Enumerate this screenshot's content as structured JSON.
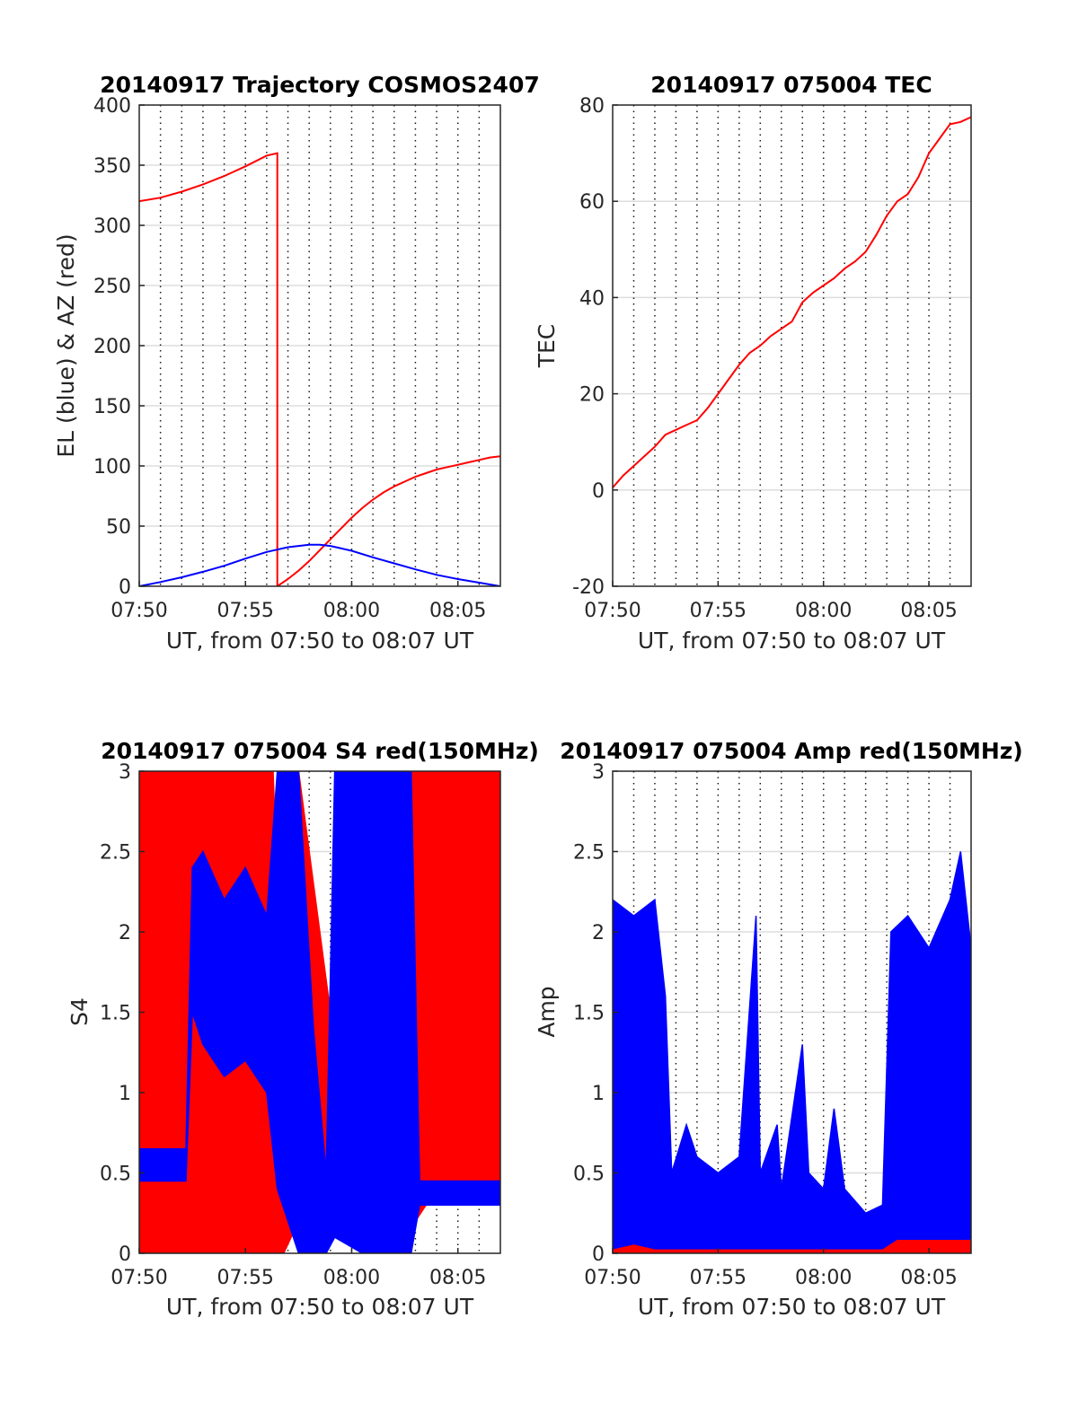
{
  "chart_data": [
    {
      "type": "line",
      "title": "20140917 Trajectory COSMOS2407",
      "xlabel": "UT, from 07:50 to 08:07 UT",
      "ylabel": "EL (blue) & AZ (red)",
      "xlim": [
        0,
        17
      ],
      "ylim": [
        0,
        400
      ],
      "x_ticks": [
        0,
        5,
        10,
        15
      ],
      "x_tick_labels": [
        "07:50",
        "07:55",
        "08:00",
        "08:05"
      ],
      "y_ticks": [
        0,
        50,
        100,
        150,
        200,
        250,
        300,
        350,
        400
      ],
      "y_tick_labels": [
        "0",
        "50",
        "100",
        "150",
        "200",
        "250",
        "300",
        "350",
        "400"
      ],
      "grid": {
        "y": "solid",
        "x_minor_dotted_every_min": true
      },
      "series": [
        {
          "color": "#ff0000",
          "mode": "line",
          "points": [
            [
              0,
              320
            ],
            [
              1,
              323
            ],
            [
              2,
              328
            ],
            [
              3,
              334
            ],
            [
              4,
              341
            ],
            [
              5,
              349
            ],
            [
              6,
              358
            ],
            [
              6.5,
              360
            ],
            [
              6.5,
              0
            ],
            [
              7,
              6
            ],
            [
              7.5,
              13
            ],
            [
              8,
              21
            ],
            [
              8.5,
              30
            ],
            [
              9,
              39
            ],
            [
              9.5,
              48
            ],
            [
              10,
              57
            ],
            [
              10.5,
              65
            ],
            [
              11,
              72
            ],
            [
              11.5,
              78
            ],
            [
              12,
              83
            ],
            [
              12.5,
              87
            ],
            [
              13,
              91
            ],
            [
              13.5,
              94
            ],
            [
              14,
              97
            ],
            [
              14.5,
              99
            ],
            [
              15,
              101
            ],
            [
              15.5,
              103
            ],
            [
              16,
              105
            ],
            [
              16.5,
              107
            ],
            [
              17,
              108
            ]
          ]
        },
        {
          "color": "#0000ff",
          "mode": "line",
          "points": [
            [
              0,
              0
            ],
            [
              1,
              3.5
            ],
            [
              2,
              7.5
            ],
            [
              3,
              12
            ],
            [
              4,
              17
            ],
            [
              5,
              23
            ],
            [
              6,
              28.5
            ],
            [
              7,
              32.5
            ],
            [
              8,
              34.5
            ],
            [
              8.5,
              34.5
            ],
            [
              9,
              33.5
            ],
            [
              10,
              29.5
            ],
            [
              11,
              24
            ],
            [
              12,
              19
            ],
            [
              13,
              14
            ],
            [
              14,
              9.5
            ],
            [
              15,
              6
            ],
            [
              16,
              3
            ],
            [
              17,
              0
            ]
          ]
        }
      ]
    },
    {
      "type": "line",
      "title": "20140917 075004 TEC",
      "xlabel": "UT, from 07:50 to 08:07 UT",
      "ylabel": "TEC",
      "xlim": [
        0,
        17
      ],
      "ylim": [
        -20,
        80
      ],
      "x_ticks": [
        0,
        5,
        10,
        15
      ],
      "x_tick_labels": [
        "07:50",
        "07:55",
        "08:00",
        "08:05"
      ],
      "y_ticks": [
        -20,
        0,
        20,
        40,
        60,
        80
      ],
      "y_tick_labels": [
        "-20",
        "0",
        "20",
        "40",
        "60",
        "80"
      ],
      "grid": {
        "y": "solid",
        "x_minor_dotted_every_min": true
      },
      "series": [
        {
          "color": "#ff0000",
          "mode": "line",
          "points": [
            [
              0,
              0.5
            ],
            [
              0.5,
              3
            ],
            [
              1,
              5
            ],
            [
              1.5,
              7
            ],
            [
              2,
              9
            ],
            [
              2.5,
              11.5
            ],
            [
              3,
              12.5
            ],
            [
              3.5,
              13.5
            ],
            [
              4,
              14.5
            ],
            [
              4.5,
              17
            ],
            [
              5,
              20
            ],
            [
              5.5,
              23
            ],
            [
              6,
              26
            ],
            [
              6.5,
              28.5
            ],
            [
              7,
              30
            ],
            [
              7.5,
              32
            ],
            [
              8,
              33.5
            ],
            [
              8.5,
              35
            ],
            [
              9,
              39
            ],
            [
              9.5,
              41
            ],
            [
              10,
              42.5
            ],
            [
              10.5,
              44
            ],
            [
              11,
              46
            ],
            [
              11.5,
              47.5
            ],
            [
              12,
              49.5
            ],
            [
              12.5,
              53
            ],
            [
              13,
              57
            ],
            [
              13.5,
              60
            ],
            [
              14,
              61.5
            ],
            [
              14.5,
              65
            ],
            [
              15,
              70
            ],
            [
              15.5,
              73
            ],
            [
              16,
              76
            ],
            [
              16.5,
              76.5
            ],
            [
              17,
              77.5
            ]
          ]
        }
      ]
    },
    {
      "type": "line",
      "title": "20140917 075004 S4 red(150MHz)",
      "xlabel": "UT, from 07:50 to 08:07 UT",
      "ylabel": "S4",
      "xlim": [
        0,
        17
      ],
      "ylim": [
        0,
        3
      ],
      "x_ticks": [
        0,
        5,
        10,
        15
      ],
      "x_tick_labels": [
        "07:50",
        "07:55",
        "08:00",
        "08:05"
      ],
      "y_ticks": [
        0,
        0.5,
        1,
        1.5,
        2,
        2.5,
        3
      ],
      "y_tick_labels": [
        "0",
        "0.5",
        "1",
        "1.5",
        "2",
        "2.5",
        "3"
      ],
      "grid": {
        "y": "solid",
        "x_minor_dotted_every_min": true
      },
      "series": [
        {
          "color": "#ff0000",
          "mode": "band",
          "points": [
            [
              0,
              0,
              3
            ],
            [
              2.5,
              0,
              3
            ],
            [
              5,
              0,
              3
            ],
            [
              6.3,
              0,
              3
            ],
            [
              6.8,
              0,
              1.2
            ],
            [
              7.5,
              0.2,
              3
            ],
            [
              9.5,
              0.2,
              1.0
            ],
            [
              10.5,
              0.2,
              3
            ],
            [
              13.0,
              0.2,
              3
            ],
            [
              13.5,
              0.3,
              3
            ],
            [
              17,
              0.3,
              3
            ]
          ]
        },
        {
          "color": "#0000ff",
          "mode": "band",
          "points": [
            [
              0,
              0.45,
              0.65
            ],
            [
              2.2,
              0.45,
              0.65
            ],
            [
              2.5,
              1.5,
              2.4
            ],
            [
              3,
              1.3,
              2.5
            ],
            [
              4,
              1.1,
              2.2
            ],
            [
              5,
              1.2,
              2.4
            ],
            [
              6,
              1.0,
              2.1
            ],
            [
              6.5,
              0.4,
              3
            ],
            [
              7.5,
              0.0,
              3
            ],
            [
              8.2,
              0.0,
              1.4
            ],
            [
              8.8,
              0.0,
              0.5
            ],
            [
              9.2,
              0.1,
              3
            ],
            [
              10.5,
              0.0,
              3
            ],
            [
              12.8,
              0.0,
              3
            ],
            [
              13.2,
              0.3,
              0.45
            ],
            [
              17,
              0.3,
              0.45
            ]
          ]
        }
      ]
    },
    {
      "type": "line",
      "title": "20140917 075004 Amp red(150MHz)",
      "xlabel": "UT, from 07:50 to 08:07 UT",
      "ylabel": "Amp",
      "xlim": [
        0,
        17
      ],
      "ylim": [
        0,
        3
      ],
      "x_ticks": [
        0,
        5,
        10,
        15
      ],
      "x_tick_labels": [
        "07:50",
        "07:55",
        "08:00",
        "08:05"
      ],
      "y_ticks": [
        0,
        0.5,
        1,
        1.5,
        2,
        2.5,
        3
      ],
      "y_tick_labels": [
        "0",
        "0.5",
        "1",
        "1.5",
        "2",
        "2.5",
        "3"
      ],
      "grid": {
        "y": "solid",
        "x_minor_dotted_every_min": true
      },
      "series": [
        {
          "color": "#0000ff",
          "mode": "band",
          "points": [
            [
              0,
              0,
              2.2
            ],
            [
              1,
              0,
              2.1
            ],
            [
              2,
              0,
              2.2
            ],
            [
              2.5,
              0,
              1.6
            ],
            [
              2.8,
              0,
              0.5
            ],
            [
              3.5,
              0,
              0.8
            ],
            [
              4,
              0,
              0.6
            ],
            [
              5,
              0,
              0.5
            ],
            [
              6,
              0,
              0.6
            ],
            [
              6.8,
              0,
              2.1
            ],
            [
              7.0,
              0,
              0.5
            ],
            [
              7.8,
              0,
              0.8
            ],
            [
              8,
              0,
              0.4
            ],
            [
              9,
              0,
              1.3
            ],
            [
              9.3,
              0,
              0.5
            ],
            [
              10,
              0,
              0.4
            ],
            [
              10.5,
              0,
              0.9
            ],
            [
              11,
              0,
              0.4
            ],
            [
              12,
              0,
              0.25
            ],
            [
              12.8,
              0,
              0.3
            ],
            [
              13.2,
              0.05,
              2.0
            ],
            [
              14,
              0.05,
              2.1
            ],
            [
              15,
              0.05,
              1.9
            ],
            [
              16,
              0.05,
              2.2
            ],
            [
              16.5,
              0.05,
              2.5
            ],
            [
              17,
              0.05,
              1.9
            ]
          ]
        },
        {
          "color": "#ff0000",
          "mode": "band",
          "points": [
            [
              0,
              0,
              0.02
            ],
            [
              1,
              0,
              0.05
            ],
            [
              2,
              0,
              0.02
            ],
            [
              12.8,
              0,
              0.02
            ],
            [
              13.5,
              0,
              0.08
            ],
            [
              15,
              0,
              0.08
            ],
            [
              17,
              0,
              0.08
            ]
          ]
        }
      ]
    }
  ]
}
